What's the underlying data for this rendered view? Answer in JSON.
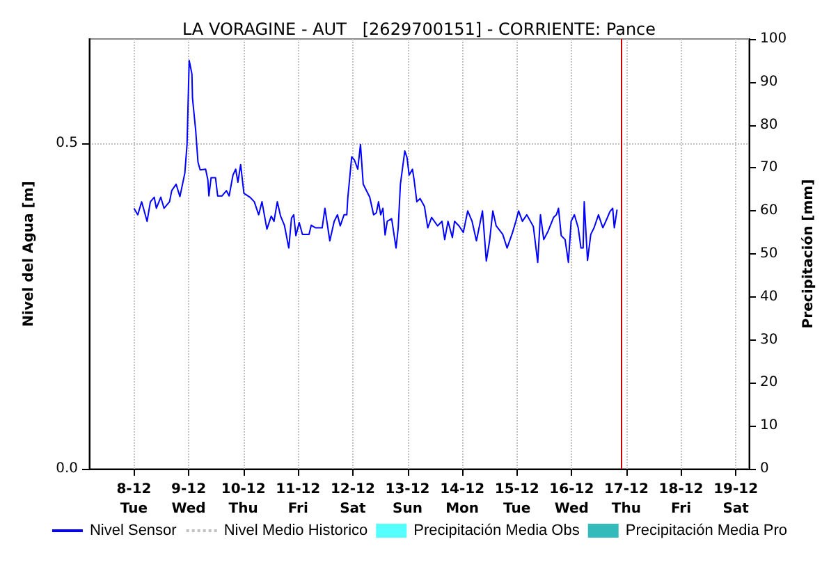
{
  "chart_data": {
    "type": "line",
    "title": "LA VORAGINE - AUT   [2629700151] - CORRIENTE: Pance",
    "ylabel": "Nivel del Agua [m]",
    "y2label": "Precipitación [mm]",
    "xlim": [
      "--12-07T04:19",
      "--12-19T05:46"
    ],
    "xticks": [
      {
        "value": "--12-08",
        "label": "8-12\nTue"
      },
      {
        "value": "--12-09",
        "label": "9-12\nWed"
      },
      {
        "value": "--12-10",
        "label": "10-12\nThu"
      },
      {
        "value": "--12-11",
        "label": "11-12\nFri"
      },
      {
        "value": "--12-12",
        "label": "12-12\nSat"
      },
      {
        "value": "--12-13",
        "label": "13-12\nSun"
      },
      {
        "value": "--12-14",
        "label": "14-12\nMon"
      },
      {
        "value": "--12-15",
        "label": "15-12\nTue"
      },
      {
        "value": "--12-16",
        "label": "16-12\nWed"
      },
      {
        "value": "--12-17",
        "label": "17-12\nThu"
      },
      {
        "value": "--12-18",
        "label": "18-12\nFri"
      },
      {
        "value": "--12-19",
        "label": "19-12\nSat"
      }
    ],
    "ylim": [
      0,
      0.66
    ],
    "yticks": [
      {
        "value": 0,
        "label": "0.0"
      },
      0.5
    ],
    "y2lim": [
      0,
      100
    ],
    "y2ticks": [
      0,
      10,
      20,
      30,
      40,
      50,
      60,
      70,
      80,
      90,
      100
    ],
    "grid": true,
    "legend": "bottom",
    "ref_lines": [
      {
        "axis": "x",
        "value": "--12-16T21:36",
        "label": null,
        "color": "#cc0000"
      }
    ],
    "series": [
      {
        "name": "Nivel Sensor",
        "color": "#0000ff",
        "x": [
          "--12-08T00:00",
          "--12-08T01:41",
          "--12-08T03:22",
          "--12-08T05:46",
          "--12-08T07:12",
          "--12-08T08:53",
          "--12-08T09:50",
          "--12-08T11:46",
          "--12-08T13:12",
          "--12-08T15:36",
          "--12-08T16:34",
          "--12-08T18:29",
          "--12-08T20:10",
          "--12-08T22:19",
          "--12-08T23:17",
          "--12-09T00:14",
          "--12-09T01:26",
          "--12-09T01:41",
          "--12-09T03:07",
          "--12-09T04:05",
          "--12-09T05:02",
          "--12-09T07:26",
          "--12-09T08:24",
          "--12-09T08:53",
          "--12-09T09:50",
          "--12-09T11:46",
          "--12-09T12:43",
          "--12-09T14:38",
          "--12-09T16:34",
          "--12-09T17:46",
          "--12-09T19:26",
          "--12-09T20:38",
          "--12-09T21:36",
          "--12-09T22:48",
          "--12-10T00:14",
          "--12-10T02:53",
          "--12-10T04:48",
          "--12-10T06:43",
          "--12-10T08:10",
          "--12-10T10:19",
          "--12-10T12:14",
          "--12-10T13:26",
          "--12-10T14:53",
          "--12-10T16:19",
          "--12-10T18:00",
          "--12-10T19:55",
          "--12-10T21:07",
          "--12-10T22:05",
          "--12-10T23:02",
          "--12-11T00:29",
          "--12-11T01:55",
          "--12-11T04:48",
          "--12-11T05:46",
          "--12-11T07:41",
          "--12-11T10:34",
          "--12-11T11:46",
          "--12-11T13:55",
          "--12-11T15:50",
          "--12-11T17:17",
          "--12-11T18:29",
          "--12-11T20:10",
          "--12-11T21:22",
          "--12-11T21:50",
          "--12-11T23:31",
          "--12-12T00:43",
          "--12-12T02:10",
          "--12-12T03:22",
          "--12-12T04:34",
          "--12-12T07:26",
          "--12-12T09:07",
          "--12-12T10:19",
          "--12-12T11:17",
          "--12-12T12:14",
          "--12-12T13:12",
          "--12-12T14:10",
          "--12-12T15:07",
          "--12-12T17:02",
          "--12-12T18:58",
          "--12-12T19:55",
          "--12-12T20:53",
          "--12-12T22:48",
          "--12-12T23:46",
          "--12-13T00:43",
          "--12-13T02:10",
          "--12-13T02:53",
          "--12-13T04:05",
          "--12-13T05:31",
          "--12-13T07:26",
          "--12-13T08:53",
          "--12-13T10:34",
          "--12-13T13:12",
          "--12-13T15:07",
          "--12-13T16:19",
          "--12-13T17:46",
          "--12-13T19:41",
          "--12-13T20:38",
          "--12-13T22:34",
          "--12-14T00:29",
          "--12-14T02:24",
          "--12-14T04:19",
          "--12-14T06:14",
          "--12-14T08:53",
          "--12-14T10:34",
          "--12-14T12:00",
          "--12-14T13:26",
          "--12-14T14:53",
          "--12-14T17:46",
          "--12-14T19:41",
          "--12-14T22:05",
          "--12-14T23:31",
          "--12-15T00:43",
          "--12-15T02:24",
          "--12-15T04:19",
          "--12-15T07:12",
          "--12-15T09:07",
          "--12-15T10:19",
          "--12-15T11:46",
          "--12-15T13:41",
          "--12-15T16:05",
          "--12-15T17:17",
          "--12-15T18:14",
          "--12-15T19:26",
          "--12-15T21:07",
          "--12-15T22:34",
          "--12-15T23:46",
          "--12-16T01:12",
          "--12-16T02:53",
          "--12-16T04:05",
          "--12-16T05:02",
          "--12-16T05:31",
          "--12-16T06:58",
          "--12-16T08:24",
          "--12-16T09:50",
          "--12-16T11:46",
          "--12-16T13:41",
          "--12-16T15:36",
          "--12-16T16:48",
          "--12-16T18:00",
          "--12-16T18:43",
          "--12-16T19:55"
        ],
        "values": [
          0.4,
          0.39,
          0.41,
          0.38,
          0.41,
          0.417,
          0.4,
          0.417,
          0.4,
          0.41,
          0.427,
          0.437,
          0.418,
          0.454,
          0.498,
          0.627,
          0.606,
          0.569,
          0.518,
          0.471,
          0.459,
          0.46,
          0.444,
          0.419,
          0.447,
          0.447,
          0.419,
          0.419,
          0.427,
          0.419,
          0.451,
          0.46,
          0.44,
          0.467,
          0.423,
          0.417,
          0.41,
          0.39,
          0.41,
          0.368,
          0.388,
          0.38,
          0.41,
          0.388,
          0.374,
          0.339,
          0.385,
          0.39,
          0.358,
          0.378,
          0.36,
          0.36,
          0.374,
          0.37,
          0.37,
          0.4,
          0.35,
          0.38,
          0.39,
          0.373,
          0.39,
          0.39,
          0.417,
          0.479,
          0.474,
          0.46,
          0.498,
          0.437,
          0.417,
          0.39,
          0.393,
          0.41,
          0.39,
          0.4,
          0.359,
          0.38,
          0.384,
          0.339,
          0.37,
          0.437,
          0.488,
          0.478,
          0.451,
          0.46,
          0.444,
          0.41,
          0.415,
          0.403,
          0.37,
          0.386,
          0.373,
          0.38,
          0.352,
          0.38,
          0.355,
          0.38,
          0.373,
          0.363,
          0.396,
          0.38,
          0.35,
          0.396,
          0.319,
          0.35,
          0.396,
          0.373,
          0.36,
          0.339,
          0.363,
          0.38,
          0.396,
          0.38,
          0.39,
          0.372,
          0.317,
          0.39,
          0.352,
          0.365,
          0.386,
          0.39,
          0.4,
          0.358,
          0.352,
          0.317,
          0.38,
          0.39,
          0.37,
          0.339,
          0.339,
          0.41,
          0.32,
          0.36,
          0.37,
          0.39,
          0.37,
          0.385,
          0.395,
          0.4,
          0.37,
          0.398
        ]
      },
      {
        "name": "Nivel Medio Historico",
        "color": "#c0c0c0",
        "line_style": "dotted"
      },
      {
        "name": "Precipitación Media Obs",
        "type": "bar",
        "color": "#55ffff"
      },
      {
        "name": "Precipitación Media Pro",
        "type": "bar",
        "color": "#33bbbb"
      }
    ]
  }
}
